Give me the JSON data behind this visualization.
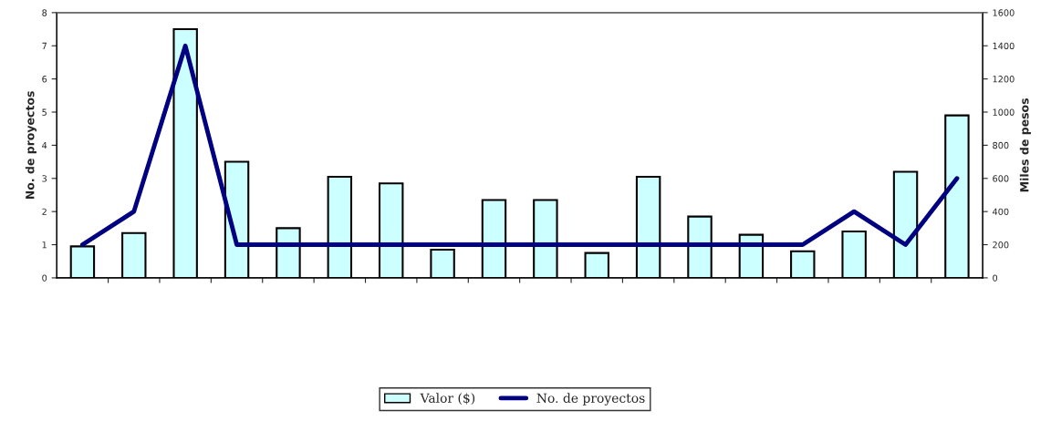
{
  "chart_data": {
    "type": "bar",
    "categories": [
      null,
      null,
      null,
      null,
      null,
      null,
      null,
      null,
      null,
      null,
      null,
      null,
      null,
      null,
      null,
      null,
      null,
      null
    ],
    "ylabel": "No. de proyectos",
    "y2label": "Miles de pesos",
    "series": [
      {
        "name": "Valor ($)",
        "axis": "y2",
        "color": "#ccffff",
        "values": [
          190,
          270,
          1500,
          700,
          300,
          610,
          570,
          170,
          470,
          470,
          150,
          610,
          370,
          260,
          160,
          280,
          640,
          980
        ]
      },
      {
        "name": "No. de proyectos",
        "type": "line",
        "axis": "y",
        "color": "#000080",
        "values": [
          1,
          2,
          7,
          1,
          1,
          1,
          1,
          1,
          1,
          1,
          1,
          1,
          1,
          1,
          1,
          2,
          1,
          3
        ]
      }
    ],
    "ylim": [
      0,
      8
    ],
    "yticks": [
      0,
      1,
      2,
      3,
      4,
      5,
      6,
      7,
      8
    ],
    "y2lim": [
      0,
      1600
    ],
    "y2ticks": [
      0,
      200,
      400,
      600,
      800,
      1000,
      1200,
      1400,
      1600
    ],
    "grid": false,
    "legend": "bottom",
    "marker": "none",
    "line_style": "solid"
  }
}
